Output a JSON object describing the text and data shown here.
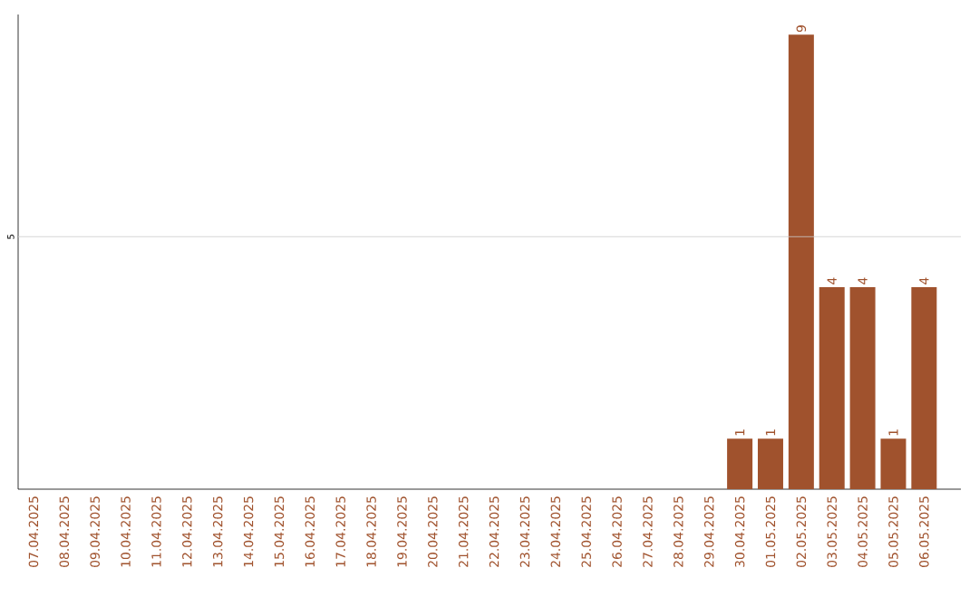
{
  "chart_data": {
    "type": "bar",
    "categories": [
      "07.04.2025",
      "08.04.2025",
      "09.04.2025",
      "10.04.2025",
      "11.04.2025",
      "12.04.2025",
      "13.04.2025",
      "14.04.2025",
      "15.04.2025",
      "16.04.2025",
      "17.04.2025",
      "18.04.2025",
      "19.04.2025",
      "20.04.2025",
      "21.04.2025",
      "22.04.2025",
      "23.04.2025",
      "24.04.2025",
      "25.04.2025",
      "26.04.2025",
      "27.04.2025",
      "28.04.2025",
      "29.04.2025",
      "30.04.2025",
      "01.05.2025",
      "02.05.2025",
      "03.05.2025",
      "04.05.2025",
      "05.05.2025",
      "06.05.2025"
    ],
    "values": [
      null,
      null,
      null,
      null,
      null,
      null,
      null,
      null,
      null,
      null,
      null,
      null,
      null,
      null,
      null,
      null,
      null,
      null,
      null,
      null,
      null,
      null,
      null,
      1,
      1,
      9,
      4,
      4,
      1,
      4
    ],
    "data_labels": true,
    "color": "#a0522d",
    "ylim": [
      0,
      9.4
    ],
    "ref_lines": [
      {
        "axis": "y",
        "value": 5,
        "label": "5",
        "color": "#cccccc"
      }
    ]
  }
}
